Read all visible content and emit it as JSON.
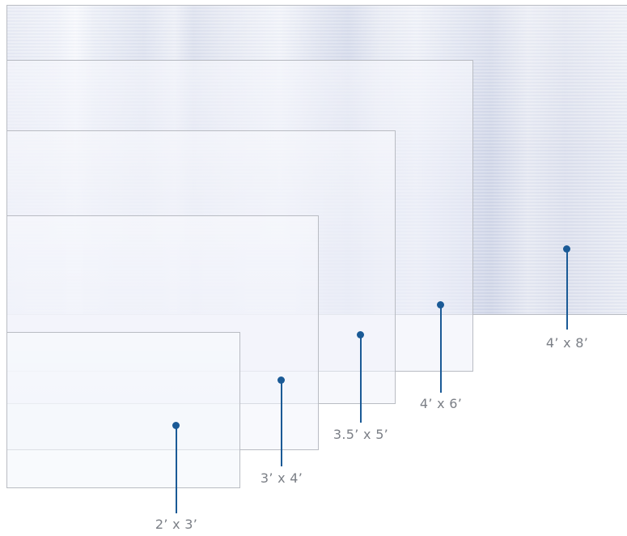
{
  "panels": [
    {
      "id": "4x8",
      "label": "4’ x 8’"
    },
    {
      "id": "4x6",
      "label": "4’ x 6’"
    },
    {
      "id": "3-5x5",
      "label": "3.5’ x 5’"
    },
    {
      "id": "3x4",
      "label": "3’ x 4’"
    },
    {
      "id": "2x3",
      "label": "2’ x 3’"
    }
  ],
  "colors": {
    "marker": "#1a5a96",
    "label": "#7b7f86",
    "panel_border": "#b9bcc3"
  }
}
